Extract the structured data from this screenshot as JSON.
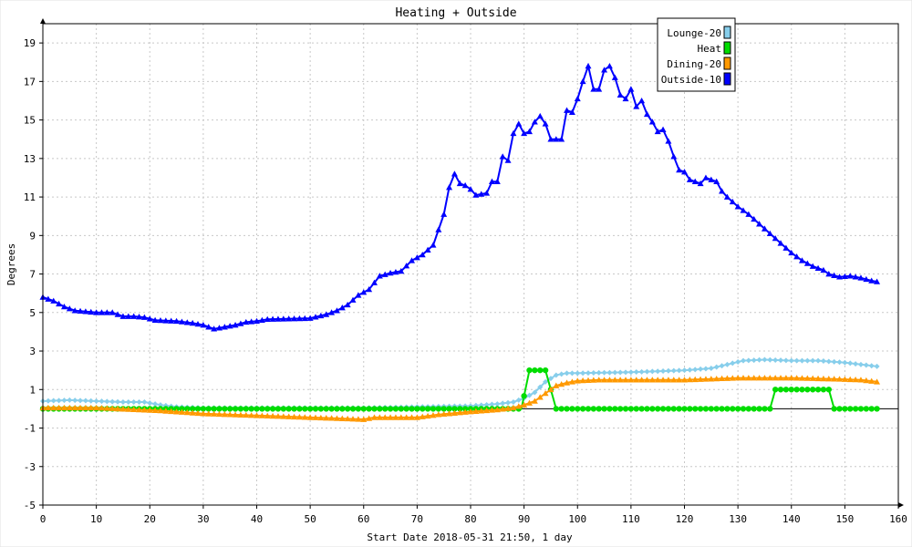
{
  "chart_data": {
    "type": "line",
    "title": "Heating + Outside",
    "xlabel": "Start Date 2018-05-31 21:50, 1 day",
    "ylabel": "Degrees",
    "xlim": [
      0,
      160
    ],
    "ylim": [
      -5,
      20
    ],
    "x_ticks": [
      0,
      10,
      20,
      30,
      40,
      50,
      60,
      70,
      80,
      90,
      100,
      110,
      120,
      130,
      140,
      150,
      160
    ],
    "y_ticks": [
      -5,
      -3,
      -1,
      1,
      3,
      5,
      7,
      9,
      11,
      13,
      15,
      17,
      19
    ],
    "grid": true,
    "legend_position": "top-right",
    "zero_line": 0,
    "series": [
      {
        "name": "Lounge-20",
        "color": "#87ceeb",
        "marker": "diamond",
        "points": [
          [
            0,
            0.4
          ],
          [
            5,
            0.45
          ],
          [
            10,
            0.4
          ],
          [
            15,
            0.35
          ],
          [
            19,
            0.35
          ],
          [
            22,
            0.2
          ],
          [
            25,
            0.1
          ],
          [
            30,
            0.05
          ],
          [
            40,
            0.05
          ],
          [
            50,
            0.05
          ],
          [
            60,
            0.05
          ],
          [
            70,
            0.1
          ],
          [
            80,
            0.15
          ],
          [
            85,
            0.25
          ],
          [
            88,
            0.35
          ],
          [
            90,
            0.55
          ],
          [
            92,
            0.85
          ],
          [
            94,
            1.4
          ],
          [
            96,
            1.75
          ],
          [
            98,
            1.85
          ],
          [
            100,
            1.85
          ],
          [
            110,
            1.9
          ],
          [
            115,
            1.95
          ],
          [
            120,
            2.0
          ],
          [
            125,
            2.1
          ],
          [
            128,
            2.3
          ],
          [
            131,
            2.5
          ],
          [
            135,
            2.55
          ],
          [
            140,
            2.5
          ],
          [
            145,
            2.5
          ],
          [
            150,
            2.4
          ],
          [
            153,
            2.3
          ],
          [
            156,
            2.2
          ]
        ]
      },
      {
        "name": "Heat",
        "color": "#00dd00",
        "marker": "circle",
        "points": [
          [
            0,
            0
          ],
          [
            89.5,
            0
          ],
          [
            91,
            2
          ],
          [
            94,
            2
          ],
          [
            96,
            0
          ],
          [
            136,
            0
          ],
          [
            137,
            1
          ],
          [
            147,
            1
          ],
          [
            148,
            0
          ],
          [
            156,
            0
          ]
        ]
      },
      {
        "name": "Dining-20",
        "color": "#ff9900",
        "marker": "triangle",
        "points": [
          [
            0,
            0.05
          ],
          [
            10,
            0.05
          ],
          [
            18,
            -0.05
          ],
          [
            22,
            -0.1
          ],
          [
            30,
            -0.25
          ],
          [
            40,
            -0.35
          ],
          [
            50,
            -0.45
          ],
          [
            60,
            -0.55
          ],
          [
            62,
            -0.45
          ],
          [
            70,
            -0.45
          ],
          [
            74,
            -0.3
          ],
          [
            80,
            -0.15
          ],
          [
            85,
            -0.05
          ],
          [
            88,
            0.05
          ],
          [
            90,
            0.2
          ],
          [
            92,
            0.4
          ],
          [
            94,
            0.8
          ],
          [
            96,
            1.2
          ],
          [
            98,
            1.35
          ],
          [
            100,
            1.45
          ],
          [
            104,
            1.5
          ],
          [
            110,
            1.5
          ],
          [
            120,
            1.5
          ],
          [
            125,
            1.55
          ],
          [
            130,
            1.6
          ],
          [
            140,
            1.6
          ],
          [
            148,
            1.55
          ],
          [
            153,
            1.5
          ],
          [
            156,
            1.4
          ]
        ]
      },
      {
        "name": "Outside-10",
        "color": "#0000ff",
        "marker": "triangle",
        "points": [
          [
            0,
            5.8
          ],
          [
            2,
            5.6
          ],
          [
            4,
            5.3
          ],
          [
            6,
            5.1
          ],
          [
            10,
            5.0
          ],
          [
            13,
            5.0
          ],
          [
            15,
            4.8
          ],
          [
            17,
            4.8
          ],
          [
            19,
            4.75
          ],
          [
            21,
            4.6
          ],
          [
            25,
            4.55
          ],
          [
            28,
            4.45
          ],
          [
            30,
            4.35
          ],
          [
            32,
            4.15
          ],
          [
            34,
            4.25
          ],
          [
            36,
            4.35
          ],
          [
            38,
            4.5
          ],
          [
            40,
            4.55
          ],
          [
            42,
            4.65
          ],
          [
            50,
            4.7
          ],
          [
            53,
            4.9
          ],
          [
            55,
            5.1
          ],
          [
            57,
            5.4
          ],
          [
            59,
            5.9
          ],
          [
            61,
            6.2
          ],
          [
            63,
            6.9
          ],
          [
            65,
            7.05
          ],
          [
            67,
            7.15
          ],
          [
            69,
            7.7
          ],
          [
            71,
            8.0
          ],
          [
            73,
            8.5
          ],
          [
            75,
            10.1
          ],
          [
            76,
            11.5
          ],
          [
            77,
            12.2
          ],
          [
            78,
            11.7
          ],
          [
            79,
            11.6
          ],
          [
            80,
            11.4
          ],
          [
            81,
            11.1
          ],
          [
            83,
            11.2
          ],
          [
            84,
            11.8
          ],
          [
            85,
            11.8
          ],
          [
            86,
            13.1
          ],
          [
            87,
            12.9
          ],
          [
            88,
            14.3
          ],
          [
            89,
            14.8
          ],
          [
            90,
            14.3
          ],
          [
            91,
            14.4
          ],
          [
            92,
            14.9
          ],
          [
            93,
            15.2
          ],
          [
            94,
            14.8
          ],
          [
            95,
            14.0
          ],
          [
            97,
            14.0
          ],
          [
            98,
            15.5
          ],
          [
            99,
            15.4
          ],
          [
            100,
            16.1
          ],
          [
            101,
            17.0
          ],
          [
            102,
            17.8
          ],
          [
            103,
            16.6
          ],
          [
            104,
            16.6
          ],
          [
            105,
            17.6
          ],
          [
            106,
            17.8
          ],
          [
            107,
            17.2
          ],
          [
            108,
            16.3
          ],
          [
            109,
            16.1
          ],
          [
            110,
            16.6
          ],
          [
            111,
            15.7
          ],
          [
            112,
            16.0
          ],
          [
            113,
            15.3
          ],
          [
            114,
            14.9
          ],
          [
            115,
            14.4
          ],
          [
            116,
            14.5
          ],
          [
            117,
            13.9
          ],
          [
            118,
            13.1
          ],
          [
            119,
            12.4
          ],
          [
            120,
            12.3
          ],
          [
            121,
            11.9
          ],
          [
            122,
            11.8
          ],
          [
            123,
            11.7
          ],
          [
            124,
            12.0
          ],
          [
            125,
            11.9
          ],
          [
            126,
            11.8
          ],
          [
            127,
            11.3
          ],
          [
            128,
            11.0
          ],
          [
            130,
            10.5
          ],
          [
            132,
            10.1
          ],
          [
            134,
            9.6
          ],
          [
            136,
            9.1
          ],
          [
            138,
            8.6
          ],
          [
            140,
            8.1
          ],
          [
            142,
            7.7
          ],
          [
            144,
            7.4
          ],
          [
            146,
            7.2
          ],
          [
            147,
            7.0
          ],
          [
            149,
            6.85
          ],
          [
            151,
            6.9
          ],
          [
            153,
            6.8
          ],
          [
            155,
            6.65
          ],
          [
            156,
            6.6
          ]
        ]
      }
    ]
  }
}
